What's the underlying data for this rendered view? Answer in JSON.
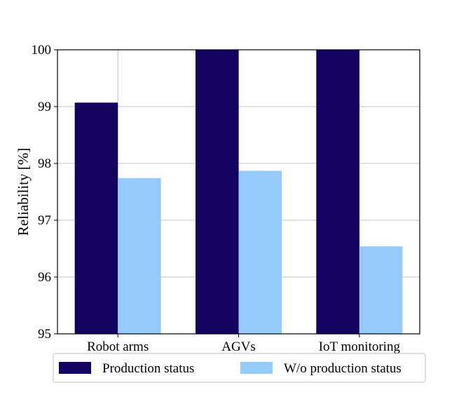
{
  "chart_data": {
    "type": "bar",
    "title": "",
    "xlabel": "",
    "ylabel": "Reliability [%]",
    "categories": [
      "Robot arms",
      "AGVs",
      "IoT monitoring"
    ],
    "series": [
      {
        "name": "Production status",
        "color": "#140361",
        "values": [
          99.07,
          100.0,
          100.0
        ]
      },
      {
        "name": "W/o production status",
        "color": "#94cbfb",
        "values": [
          97.74,
          97.87,
          96.54
        ]
      }
    ],
    "ylim": [
      95,
      100
    ],
    "yticks": [
      95,
      96,
      97,
      98,
      99,
      100
    ],
    "grid": true,
    "legend_position": "bottom"
  }
}
